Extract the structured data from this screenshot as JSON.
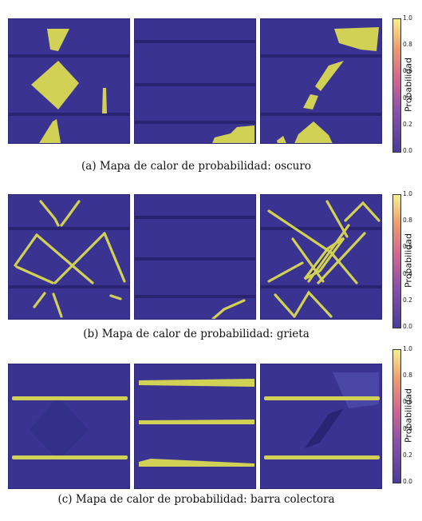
{
  "colorbar": {
    "label": "Probabilidad",
    "ticks": [
      "1.0",
      "0.8",
      "0.6",
      "0.4",
      "0.2",
      "0.0"
    ],
    "colors": [
      "#483d9e",
      "#8a4fb0",
      "#d4668f",
      "#f09a6c",
      "#f7f08a"
    ]
  },
  "panels": [
    {
      "caption": "(a) Mapa de calor de probabilidad: oscuro"
    },
    {
      "caption": "(b)  Mapa de calor de probabilidad: grieta"
    },
    {
      "caption": "(c) Mapa de calor de probabilidad: barra colectora"
    }
  ],
  "colors": {
    "cell_background": "#3a3391",
    "highlight": "#d1d155",
    "busbar": "#2a2470"
  }
}
